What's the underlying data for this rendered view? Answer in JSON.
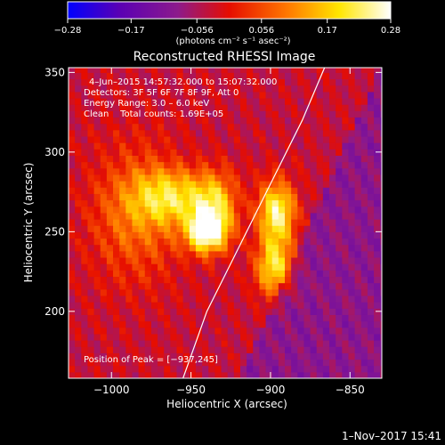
{
  "chart_data": {
    "type": "heatmap",
    "title": "Reconstructed RHESSI Image",
    "xlabel": "Heliocentric X (arcsec)",
    "ylabel": "Heliocentric Y (arcsec)",
    "xlim": [
      -1027,
      -830
    ],
    "ylim": [
      158,
      353
    ],
    "x_ticks": [
      -1000,
      -950,
      -900,
      -850
    ],
    "x_tick_labels": [
      "−1000",
      "−950",
      "−900",
      "−850"
    ],
    "y_ticks": [
      200,
      250,
      300,
      350
    ],
    "y_tick_labels": [
      "200",
      "250",
      "300",
      "350"
    ],
    "colorbar": {
      "range": [
        -0.28,
        0.28
      ],
      "ticks": [
        -0.28,
        -0.17,
        -0.056,
        0.056,
        0.17,
        0.28
      ],
      "tick_labels": [
        "−0.28",
        "−0.17",
        "−0.056",
        "0.056",
        "0.17",
        "0.28"
      ],
      "unit_label": "(photons cm⁻² s⁻¹ asec⁻²)",
      "colors": [
        "#0000ff",
        "#5a00b4",
        "#8c1a8c",
        "#e60d00",
        "#ff7800",
        "#ffe600",
        "#ffffff"
      ]
    },
    "annotations": [
      "4–Jun–2015 14:57:32.000 to 15:07:32.000",
      "Detectors: 3F 5F 6F 7F 8F 9F, Att 0",
      "Energy Range: 3.0 – 6.0 keV",
      "Clean    Total counts: 1.69E+05"
    ],
    "peak_label": "Position of Peak = [−937,245]",
    "sources": [
      {
        "x": -962,
        "y": 272,
        "amp": 0.55,
        "sx": 16,
        "sy": 12
      },
      {
        "x": -940,
        "y": 250,
        "amp": 0.9,
        "sx": 9,
        "sy": 9
      },
      {
        "x": -935,
        "y": 268,
        "amp": 0.55,
        "sx": 10,
        "sy": 14
      },
      {
        "x": -896,
        "y": 262,
        "amp": 0.8,
        "sx": 8,
        "sy": 14
      },
      {
        "x": -898,
        "y": 228,
        "amp": 0.65,
        "sx": 8,
        "sy": 12
      },
      {
        "x": -985,
        "y": 262,
        "amp": 0.35,
        "sx": 20,
        "sy": 30
      }
    ],
    "limb_curve": [
      [
        -955,
        158
      ],
      [
        -940,
        200
      ],
      [
        -920,
        240
      ],
      [
        -900,
        280
      ],
      [
        -880,
        320
      ],
      [
        -866,
        353
      ]
    ]
  },
  "footer": {
    "date": "1–Nov–2017 15:41"
  }
}
